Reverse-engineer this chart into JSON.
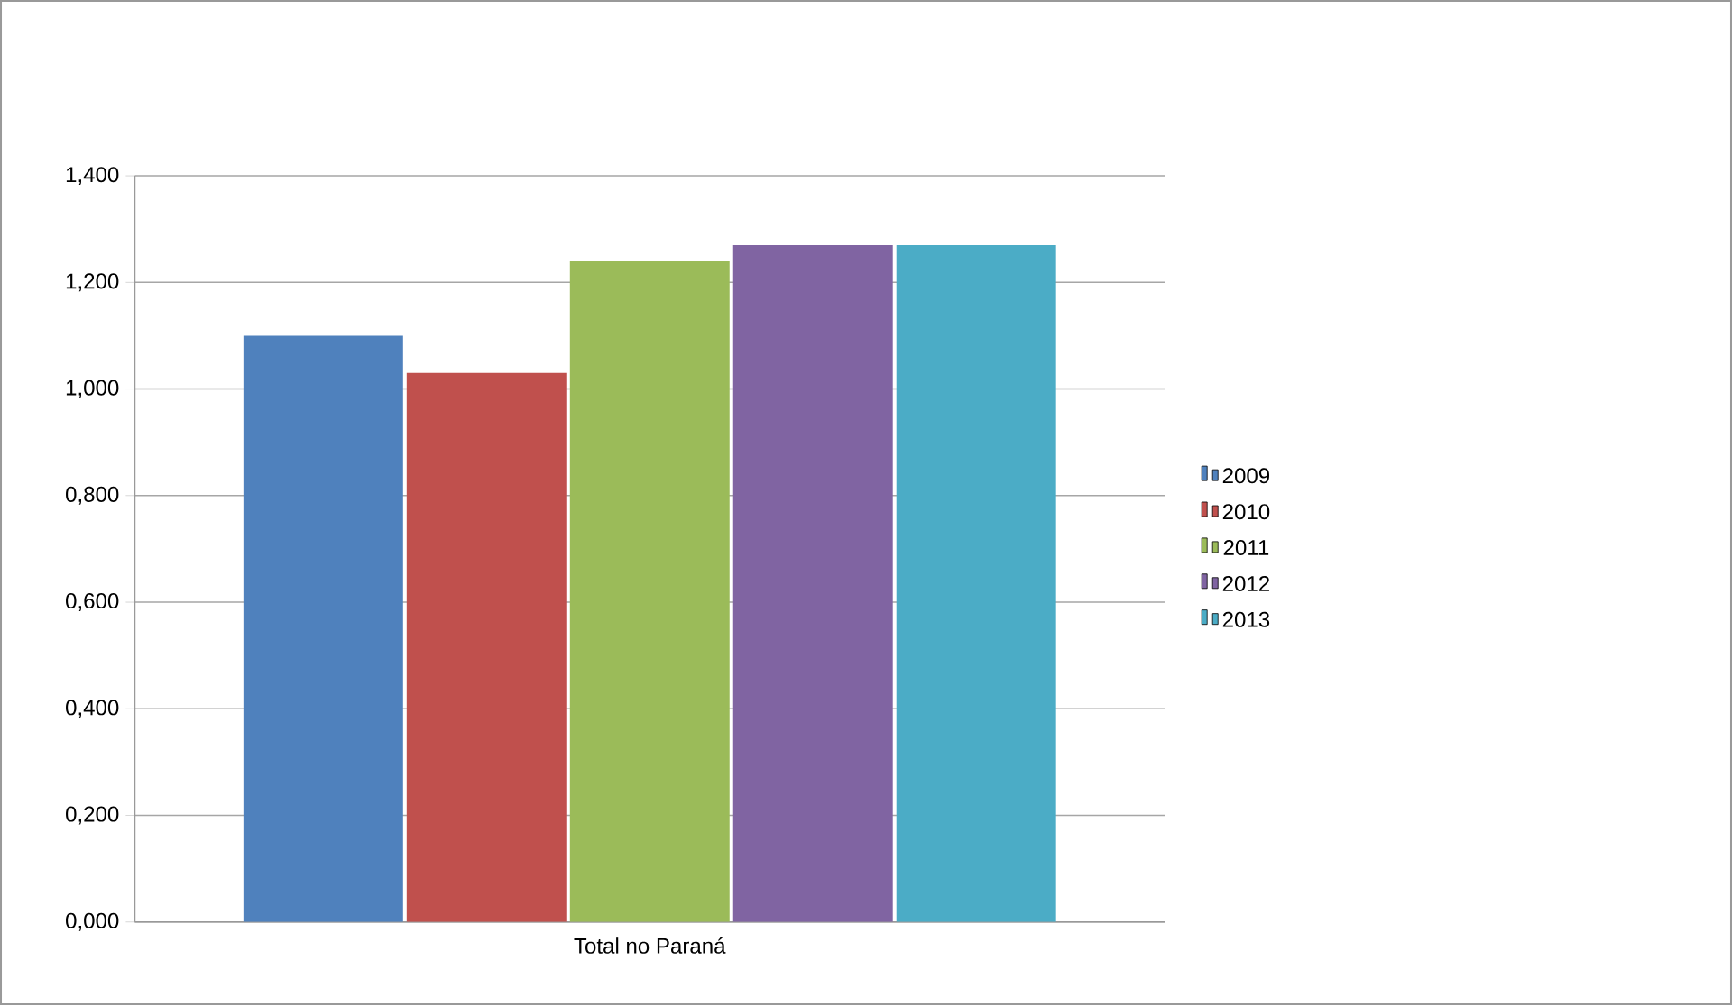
{
  "chart_data": {
    "type": "bar",
    "categories": [
      "Total no Paraná"
    ],
    "series": [
      {
        "name": "2009",
        "color": "#4f81bd",
        "values": [
          1.1
        ]
      },
      {
        "name": "2010",
        "color": "#c0504d",
        "values": [
          1.03
        ]
      },
      {
        "name": "2011",
        "color": "#9bbb59",
        "values": [
          1.24
        ]
      },
      {
        "name": "2012",
        "color": "#8064a2",
        "values": [
          1.27
        ]
      },
      {
        "name": "2013",
        "color": "#4bacc6",
        "values": [
          1.27
        ]
      }
    ],
    "ylim": [
      0,
      1.4
    ],
    "yticks": [
      {
        "value": 0,
        "label": "0,000"
      },
      {
        "value": 0.2,
        "label": "0,200"
      },
      {
        "value": 0.4,
        "label": "0,400"
      },
      {
        "value": 0.6,
        "label": "0,600"
      },
      {
        "value": 0.8,
        "label": "0,800"
      },
      {
        "value": 1.0,
        "label": "1,000"
      },
      {
        "value": 1.2,
        "label": "1,200"
      },
      {
        "value": 1.4,
        "label": "1,400"
      }
    ],
    "grid": "y",
    "legend": "right"
  }
}
